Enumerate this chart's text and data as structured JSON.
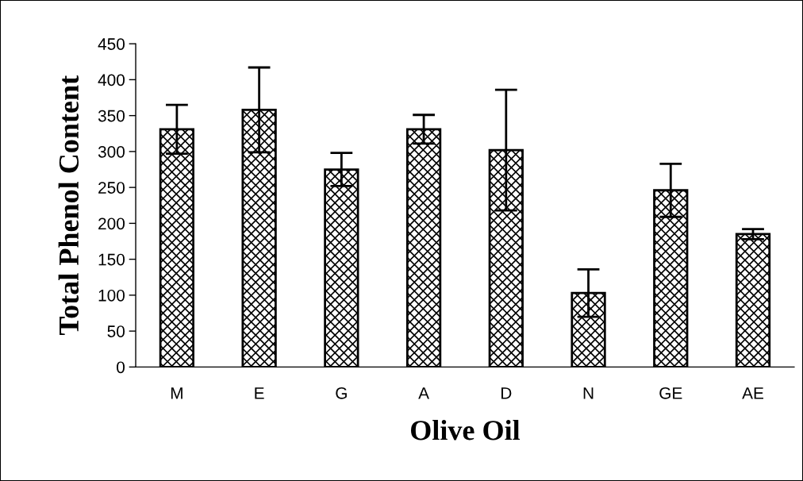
{
  "chart_data": {
    "type": "bar",
    "xlabel": "Olive Oil",
    "ylabel": "Total Phenol Content",
    "categories": [
      "M",
      "E",
      "G",
      "A",
      "D",
      "N",
      "GE",
      "AE"
    ],
    "values": [
      331,
      358,
      275,
      331,
      302,
      103,
      246,
      185
    ],
    "errors": [
      34,
      59,
      23,
      20,
      84,
      33,
      37,
      7
    ],
    "ylim": [
      0,
      450
    ],
    "yticks": [
      0,
      50,
      100,
      150,
      200,
      250,
      300,
      350,
      400,
      450
    ],
    "grid": false,
    "legend": false
  }
}
